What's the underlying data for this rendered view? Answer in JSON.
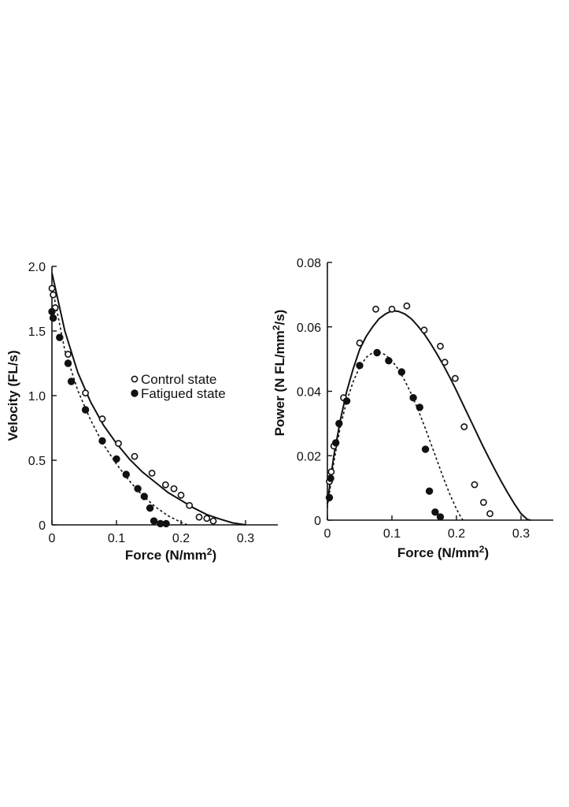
{
  "chart_data": [
    {
      "type": "scatter",
      "xlabel": "Force (N/mm",
      "xlabel_sup": "2",
      "xlabel_end": ")",
      "ylabel": "Velocity (FL/s)",
      "xlim": [
        0,
        0.35
      ],
      "ylim": [
        0,
        2.0
      ],
      "xticks": [
        0,
        0.1,
        0.2,
        0.3
      ],
      "xtick_labels": [
        "0",
        "0.1",
        "0.2",
        "0.3"
      ],
      "yticks": [
        0,
        0.5,
        1.0,
        1.5,
        2.0
      ],
      "ytick_labels": [
        "0",
        "0.5",
        "1.0",
        "1.5",
        "2.0"
      ],
      "legend": {
        "position": "center-right",
        "entries": [
          {
            "label": "Control state",
            "marker": "open-circle"
          },
          {
            "label": "Fatigued state",
            "marker": "filled-circle"
          }
        ]
      },
      "series": [
        {
          "name": "Control state",
          "marker": "open-circle",
          "x": [
            0.0,
            0.002,
            0.005,
            0.025,
            0.052,
            0.078,
            0.103,
            0.128,
            0.155,
            0.176,
            0.189,
            0.2,
            0.213,
            0.228,
            0.24,
            0.25
          ],
          "y": [
            1.83,
            1.78,
            1.68,
            1.32,
            1.02,
            0.82,
            0.63,
            0.53,
            0.4,
            0.31,
            0.28,
            0.23,
            0.15,
            0.06,
            0.05,
            0.03
          ]
        },
        {
          "name": "Fatigued state",
          "marker": "filled-circle",
          "x": [
            0.0,
            0.002,
            0.012,
            0.025,
            0.03,
            0.052,
            0.078,
            0.1,
            0.115,
            0.133,
            0.143,
            0.152,
            0.158,
            0.168,
            0.177
          ],
          "y": [
            1.65,
            1.6,
            1.45,
            1.25,
            1.11,
            0.89,
            0.65,
            0.51,
            0.39,
            0.28,
            0.22,
            0.13,
            0.03,
            0.01,
            0.01
          ]
        }
      ],
      "fit_curves": [
        {
          "style": "solid",
          "x": [
            0,
            0.02,
            0.04,
            0.06,
            0.08,
            0.1,
            0.12,
            0.14,
            0.16,
            0.18,
            0.2,
            0.22,
            0.24,
            0.26,
            0.28,
            0.3
          ],
          "y": [
            1.95,
            1.5,
            1.18,
            0.95,
            0.77,
            0.63,
            0.51,
            0.41,
            0.33,
            0.25,
            0.19,
            0.13,
            0.08,
            0.045,
            0.015,
            0.0
          ]
        },
        {
          "style": "dashed",
          "x": [
            0,
            0.02,
            0.04,
            0.06,
            0.08,
            0.1,
            0.12,
            0.14,
            0.16,
            0.18,
            0.2,
            0.21
          ],
          "y": [
            1.85,
            1.35,
            1.04,
            0.81,
            0.62,
            0.47,
            0.34,
            0.23,
            0.14,
            0.07,
            0.02,
            0.0
          ]
        }
      ]
    },
    {
      "type": "scatter",
      "xlabel": "Force (N/mm",
      "xlabel_sup": "2",
      "xlabel_end": ")",
      "ylabel": "Power (N FL/mm",
      "ylabel_sup": "2",
      "ylabel_end": "/s)",
      "xlim": [
        0,
        0.35
      ],
      "ylim": [
        0,
        0.08
      ],
      "xticks": [
        0,
        0.1,
        0.2,
        0.3
      ],
      "xtick_labels": [
        "0",
        "0.1",
        "0.2",
        "0.3"
      ],
      "yticks": [
        0,
        0.02,
        0.04,
        0.06,
        0.08
      ],
      "ytick_labels": [
        "0",
        "0.02",
        "0.04",
        "0.06",
        "0.08"
      ],
      "series": [
        {
          "name": "Control state",
          "marker": "open-circle",
          "x": [
            0.003,
            0.006,
            0.01,
            0.025,
            0.05,
            0.075,
            0.1,
            0.123,
            0.15,
            0.175,
            0.182,
            0.198,
            0.212,
            0.228,
            0.242,
            0.252
          ],
          "y": [
            0.012,
            0.015,
            0.023,
            0.038,
            0.055,
            0.0655,
            0.0655,
            0.0665,
            0.059,
            0.054,
            0.049,
            0.044,
            0.029,
            0.011,
            0.0055,
            0.002
          ]
        },
        {
          "name": "Fatigued state",
          "marker": "filled-circle",
          "x": [
            0.003,
            0.005,
            0.013,
            0.018,
            0.03,
            0.05,
            0.077,
            0.095,
            0.115,
            0.133,
            0.143,
            0.152,
            0.158,
            0.167,
            0.175
          ],
          "y": [
            0.007,
            0.013,
            0.024,
            0.03,
            0.037,
            0.048,
            0.052,
            0.0495,
            0.046,
            0.038,
            0.035,
            0.022,
            0.009,
            0.0025,
            0.001
          ]
        }
      ],
      "fit_curves": [
        {
          "style": "solid",
          "x": [
            0,
            0.005,
            0.01,
            0.02,
            0.03,
            0.04,
            0.05,
            0.06,
            0.07,
            0.08,
            0.09,
            0.1,
            0.11,
            0.12,
            0.13,
            0.14,
            0.15,
            0.16,
            0.17,
            0.18,
            0.19,
            0.2,
            0.21,
            0.22,
            0.23,
            0.24,
            0.25,
            0.26,
            0.27,
            0.28,
            0.29,
            0.3,
            0.31,
            0.315
          ],
          "y": [
            0.005,
            0.013,
            0.02,
            0.031,
            0.04,
            0.047,
            0.053,
            0.057,
            0.06,
            0.0625,
            0.064,
            0.065,
            0.0648,
            0.064,
            0.0625,
            0.0603,
            0.0578,
            0.0548,
            0.0515,
            0.048,
            0.0442,
            0.0402,
            0.036,
            0.0318,
            0.0276,
            0.0234,
            0.0194,
            0.0155,
            0.0118,
            0.0083,
            0.005,
            0.002,
            0.0002,
            0.0
          ]
        },
        {
          "style": "dashed",
          "x": [
            0,
            0.005,
            0.01,
            0.02,
            0.03,
            0.04,
            0.05,
            0.06,
            0.07,
            0.08,
            0.09,
            0.1,
            0.11,
            0.12,
            0.13,
            0.14,
            0.15,
            0.16,
            0.17,
            0.18,
            0.19,
            0.2,
            0.205,
            0.21
          ],
          "y": [
            0.004,
            0.011,
            0.018,
            0.029,
            0.037,
            0.043,
            0.0475,
            0.0505,
            0.052,
            0.0522,
            0.0513,
            0.0495,
            0.0468,
            0.0433,
            0.0392,
            0.0345,
            0.0294,
            0.024,
            0.0185,
            0.013,
            0.0079,
            0.0035,
            0.0016,
            0.0
          ]
        }
      ]
    }
  ]
}
